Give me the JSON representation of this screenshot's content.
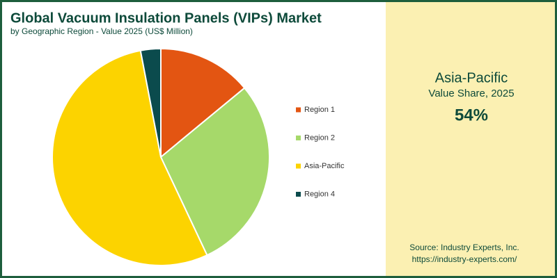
{
  "chart_data": {
    "type": "pie",
    "title": "Global Vacuum Insulation Panels (VIPs) Market",
    "subtitle": "by Geographic Region - Value 2025 (US$ Million)",
    "categories": [
      "Region 1",
      "Region 2",
      "Asia-Pacific",
      "Region 4"
    ],
    "values": [
      14,
      29,
      54,
      3
    ],
    "colors": [
      "#e35512",
      "#a6d96a",
      "#fcd300",
      "#0b4b4d"
    ]
  },
  "side_panel": {
    "region": "Asia-Pacific",
    "label": "Value Share, 2025",
    "value": "54%"
  },
  "source": {
    "line1": "Source: Industry Experts, Inc.",
    "line2": "https://industry-experts.com/"
  }
}
